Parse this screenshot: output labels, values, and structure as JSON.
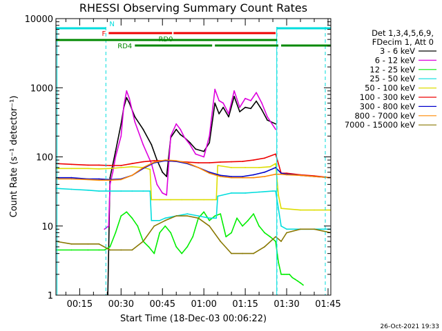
{
  "chart_data": {
    "type": "line",
    "title": "RHESSI Observing Summary Count Rates",
    "xlabel": "Start Time (18-Dec-03 00:06:22)",
    "ylabel": "Count Rate (s⁻¹ detector⁻¹)",
    "yscale": "log",
    "ylim": [
      1,
      10000
    ],
    "xlim": [
      6.4,
      106.0
    ],
    "x_unit": "minutes after 00:00 UT",
    "x_ticks": [
      {
        "value": 15,
        "label": "00:15"
      },
      {
        "value": 30,
        "label": "00:30"
      },
      {
        "value": 45,
        "label": "00:45"
      },
      {
        "value": 60,
        "label": "01:00"
      },
      {
        "value": 75,
        "label": "01:15"
      },
      {
        "value": 90,
        "label": "01:30"
      },
      {
        "value": 105,
        "label": "01:45"
      }
    ],
    "y_ticks": [
      {
        "value": 1,
        "label": "1"
      },
      {
        "value": 10,
        "label": "10"
      },
      {
        "value": 100,
        "label": "100"
      },
      {
        "value": 1000,
        "label": "1000"
      },
      {
        "value": 10000,
        "label": "10000"
      }
    ],
    "legend_header": [
      "Det 1,3,4,5,6,9,",
      "FDecim 1, Att 0"
    ],
    "legend_position": "right",
    "series": [
      {
        "name": "3 - 6 keV",
        "color": "#000000",
        "x": [
          6.4,
          12,
          18,
          22,
          24,
          25.2,
          26,
          28,
          30,
          31,
          32,
          33,
          35,
          38,
          41,
          43,
          45,
          46.5,
          48,
          50,
          51.5,
          53,
          55,
          57,
          60,
          62,
          64,
          65.5,
          67,
          69,
          71,
          73,
          75,
          77,
          79,
          81,
          83,
          86
        ],
        "y": [
          null,
          null,
          null,
          null,
          null,
          1,
          50,
          120,
          300,
          520,
          720,
          600,
          380,
          250,
          150,
          90,
          60,
          52,
          190,
          250,
          210,
          190,
          160,
          130,
          120,
          160,
          600,
          420,
          520,
          380,
          750,
          450,
          520,
          500,
          640,
          480,
          340,
          300
        ]
      },
      {
        "name": "6 - 12 keV",
        "color": "#dd00dd",
        "x": [
          6.4,
          12,
          18,
          22,
          24,
          25.5,
          26,
          27,
          28,
          30,
          31,
          32,
          33,
          35,
          38,
          41,
          43,
          45,
          46.5,
          48,
          50,
          51.5,
          53,
          55,
          57,
          60,
          62,
          64,
          65.5,
          67,
          69,
          71,
          73,
          75,
          77,
          79,
          81,
          83,
          86,
          86.5
        ],
        "y": [
          null,
          null,
          null,
          null,
          9,
          10,
          40,
          60,
          100,
          200,
          550,
          900,
          700,
          320,
          150,
          80,
          40,
          30,
          28,
          200,
          300,
          250,
          190,
          150,
          110,
          100,
          200,
          950,
          650,
          600,
          420,
          900,
          520,
          700,
          650,
          850,
          600,
          380,
          250,
          null
        ]
      },
      {
        "name": "12 - 25 keV",
        "color": "#00ee00",
        "x": [
          6.4,
          12,
          18,
          22,
          24,
          26,
          28,
          30,
          32,
          34,
          36,
          38,
          40,
          42,
          44,
          46,
          48,
          50,
          52,
          54,
          56,
          58,
          60,
          62,
          64,
          66,
          68,
          70,
          72,
          74,
          76,
          78,
          80,
          82,
          84,
          86,
          87,
          88,
          89,
          90,
          91,
          92,
          93,
          94,
          95,
          96
        ],
        "y": [
          4.5,
          4.5,
          4.5,
          4.5,
          4.5,
          5,
          8,
          14,
          16,
          13,
          10,
          6,
          5,
          4,
          8,
          10,
          8,
          5,
          4,
          5,
          7,
          13,
          16,
          12,
          14,
          15,
          7,
          8,
          13,
          10,
          12,
          15,
          10,
          8,
          7,
          6,
          3,
          2,
          2,
          2,
          2,
          1.8,
          1.7,
          1.6,
          1.5,
          1.4
        ]
      },
      {
        "name": "25 - 50 keV",
        "color": "#00dddd",
        "x": [
          6.4,
          12,
          18,
          22,
          26,
          30,
          34,
          38,
          40.5,
          41,
          44,
          46,
          50,
          54,
          58,
          62,
          64.5,
          65,
          70,
          75,
          80,
          85,
          86,
          88,
          90,
          95,
          100,
          106
        ],
        "y": [
          35,
          34,
          33,
          32,
          32,
          32,
          32,
          32,
          32,
          12,
          12,
          13,
          14,
          15,
          14,
          13,
          13,
          27,
          30,
          30,
          31,
          32,
          32,
          10,
          9,
          9,
          9,
          9
        ]
      },
      {
        "name": "50 - 100 keV",
        "color": "#dddd00",
        "x": [
          6.4,
          12,
          18,
          22,
          26,
          30,
          34,
          38,
          40.5,
          41,
          44,
          48,
          52,
          56,
          60,
          63,
          64.5,
          65,
          70,
          75,
          80,
          84,
          86,
          87,
          88,
          95,
          100,
          106
        ],
        "y": [
          68,
          68,
          68,
          67,
          68,
          70,
          72,
          70,
          66,
          24,
          24,
          24,
          24,
          24,
          24,
          24,
          24,
          75,
          70,
          70,
          70,
          72,
          80,
          28,
          18,
          17,
          17,
          17
        ]
      },
      {
        "name": "100 - 300 keV",
        "color": "#ee0000",
        "x": [
          6.4,
          12,
          18,
          22,
          26,
          30,
          34,
          38,
          42,
          46,
          50,
          54,
          58,
          62,
          66,
          70,
          74,
          78,
          82,
          86,
          88,
          90,
          95,
          100,
          106
        ],
        "y": [
          80,
          78,
          76,
          76,
          75,
          75,
          80,
          85,
          88,
          88,
          86,
          84,
          82,
          82,
          84,
          85,
          86,
          90,
          96,
          110,
          58,
          58,
          55,
          53,
          50
        ]
      },
      {
        "name": "300 - 800 keV",
        "color": "#0000cc",
        "x": [
          6.4,
          12,
          18,
          22,
          26,
          30,
          34,
          38,
          42,
          46,
          50,
          54,
          58,
          62,
          66,
          70,
          74,
          78,
          82,
          86,
          88,
          90,
          95,
          100,
          106
        ],
        "y": [
          50,
          50,
          48,
          48,
          47,
          48,
          54,
          68,
          82,
          88,
          86,
          80,
          70,
          60,
          54,
          52,
          52,
          55,
          60,
          70,
          58,
          56,
          54,
          52,
          50
        ]
      },
      {
        "name": "800 - 7000 keV",
        "color": "#ff8800",
        "x": [
          6.4,
          12,
          18,
          22,
          26,
          30,
          34,
          38,
          42,
          46,
          50,
          54,
          58,
          62,
          66,
          70,
          74,
          78,
          82,
          86,
          88,
          90,
          95,
          100,
          106
        ],
        "y": [
          48,
          48,
          47,
          46,
          46,
          47,
          54,
          70,
          84,
          90,
          88,
          82,
          70,
          58,
          52,
          50,
          50,
          50,
          52,
          56,
          56,
          55,
          54,
          52,
          50
        ]
      },
      {
        "name": "7000 - 15000 keV",
        "color": "#887700",
        "x": [
          6.4,
          12,
          18,
          22,
          26,
          30,
          34,
          38,
          42,
          46,
          50,
          54,
          58,
          62,
          66,
          70,
          74,
          78,
          82,
          86,
          88,
          90,
          95,
          100,
          106
        ],
        "y": [
          6,
          5.5,
          5.5,
          5.5,
          4.5,
          4.5,
          4.5,
          6,
          10,
          12,
          14,
          14,
          13,
          10,
          6,
          4,
          4,
          4,
          5,
          7,
          6,
          8,
          9,
          9,
          8
        ]
      }
    ],
    "flags": [
      {
        "label": "N",
        "color": "#00dddd",
        "segments": [
          [
            6.4,
            24.5
          ],
          [
            86.5,
            106.0
          ]
        ]
      },
      {
        "label": "F",
        "color": "#ee0000",
        "segments": [
          [
            25.5,
            48.5
          ],
          [
            49.0,
            86.0
          ]
        ]
      },
      {
        "label": "RD0",
        "color": "#008800",
        "segments": [
          [
            6.4,
            86.5
          ]
        ]
      },
      {
        "label": "RD4",
        "color": "#008800",
        "segments": [
          [
            35,
            63
          ],
          [
            64,
            87
          ],
          [
            88,
            106
          ]
        ]
      }
    ],
    "vertical_markers": [
      {
        "x": 6.8,
        "style": "solid",
        "color": "#00dddd"
      },
      {
        "x": 24.5,
        "style": "dashed",
        "color": "#00dddd"
      },
      {
        "x": 86.4,
        "style": "solid",
        "color": "#00dddd"
      },
      {
        "x": 86.5,
        "style": "dashed",
        "color": "#00dddd"
      },
      {
        "x": 104.0,
        "style": "dashed",
        "color": "#00dddd"
      }
    ]
  },
  "timestamp": "26-Oct-2021 19:33"
}
